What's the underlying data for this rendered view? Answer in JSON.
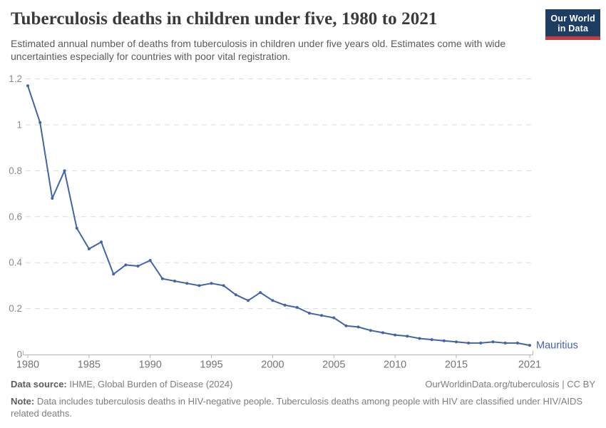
{
  "header": {
    "title": "Tuberculosis deaths in children under five, 1980 to 2021",
    "subtitle": "Estimated annual number of deaths from tuberculosis in children under five years old. Estimates come with wide uncertainties especially for countries with poor vital registration.",
    "logo": {
      "line1": "Our World",
      "line2": "in Data"
    }
  },
  "chart_data": {
    "type": "line",
    "title": "Tuberculosis deaths in children under five, 1980 to 2021",
    "xlabel": "",
    "ylabel": "",
    "xlim": [
      1980,
      2021
    ],
    "ylim": [
      0,
      1.2
    ],
    "grid": "horizontal-dashed",
    "legend_position": "end-of-line",
    "x_ticks": [
      1980,
      1985,
      1990,
      1995,
      2000,
      2005,
      2010,
      2015,
      2021
    ],
    "y_ticks": [
      "0",
      "0.2",
      "0.4",
      "0.6",
      "0.8",
      "1",
      "1.2"
    ],
    "x": [
      1980,
      1981,
      1982,
      1983,
      1984,
      1985,
      1986,
      1987,
      1988,
      1989,
      1990,
      1991,
      1992,
      1993,
      1994,
      1995,
      1996,
      1997,
      1998,
      1999,
      2000,
      2001,
      2002,
      2003,
      2004,
      2005,
      2006,
      2007,
      2008,
      2009,
      2010,
      2011,
      2012,
      2013,
      2014,
      2015,
      2016,
      2017,
      2018,
      2019,
      2020,
      2021
    ],
    "series": [
      {
        "name": "Mauritius",
        "color": "#4065a8",
        "values": [
          1.17,
          1.01,
          0.68,
          0.8,
          0.55,
          0.46,
          0.49,
          0.35,
          0.39,
          0.385,
          0.41,
          0.33,
          0.32,
          0.31,
          0.3,
          0.31,
          0.3,
          0.26,
          0.235,
          0.27,
          0.235,
          0.215,
          0.205,
          0.18,
          0.17,
          0.16,
          0.125,
          0.12,
          0.105,
          0.095,
          0.085,
          0.08,
          0.07,
          0.065,
          0.06,
          0.055,
          0.05,
          0.05,
          0.055,
          0.05,
          0.05,
          0.04
        ]
      }
    ]
  },
  "footer": {
    "datasource_label": "Data source:",
    "datasource_value": " IHME, Global Burden of Disease (2024)",
    "rights": "OurWorldinData.org/tuberculosis | CC BY",
    "note_label": "Note:",
    "note_value": " Data includes tuberculosis deaths in HIV-negative people. Tuberculosis deaths among people with HIV are classified under HIV/AIDS related deaths."
  },
  "colors": {
    "line": "#4065a8",
    "grid": "#dcdcdc",
    "axis": "#b3b3b3",
    "y_tick_label": "#8c8c8c",
    "x_tick_label": "#757575",
    "title": "#3a3a3a",
    "subtitle": "#5a5a5a",
    "footer_text": "#7e7e7e",
    "logo_bg": "#1d3d63",
    "logo_accent": "#c93a3b"
  }
}
